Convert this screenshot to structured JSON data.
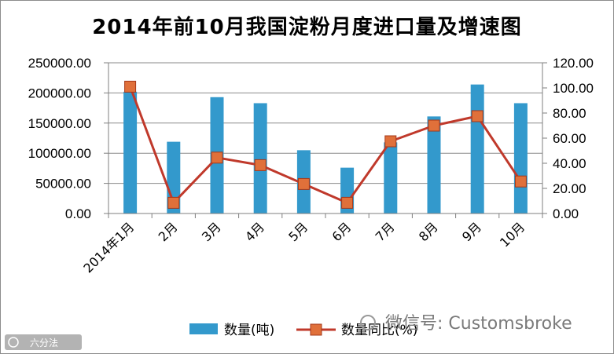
{
  "chart_data": {
    "type": "bar",
    "title": "2014年前10月我国淀粉月度进口量及增速图",
    "categories": [
      "2014年1月",
      "2月",
      "3月",
      "4月",
      "5月",
      "6月",
      "7月",
      "8月",
      "9月",
      "10月"
    ],
    "series": [
      {
        "name": "数量(吨)",
        "type": "bar",
        "axis": "left",
        "color": "#3399cc",
        "values": [
          202000,
          119000,
          193000,
          183000,
          105000,
          76000,
          118000,
          161000,
          214000,
          183000
        ]
      },
      {
        "name": "数量同比(%)",
        "type": "line",
        "axis": "right",
        "color": "#c0392b",
        "marker_color": "#e0703a",
        "values": [
          101,
          8.5,
          44.5,
          38.5,
          23.5,
          8.5,
          57.5,
          70,
          77.5,
          25.5
        ]
      }
    ],
    "left_axis": {
      "ylim": [
        0,
        250000
      ],
      "ticks": [
        "0.00",
        "50000.00",
        "100000.00",
        "150000.00",
        "200000.00",
        "250000.00"
      ]
    },
    "right_axis": {
      "ylim": [
        0,
        120
      ],
      "ticks": [
        "0.00",
        "20.00",
        "40.00",
        "60.00",
        "80.00",
        "100.00",
        "120.00"
      ]
    },
    "grid": true,
    "legend_position": "bottom"
  },
  "watermarks": {
    "wechat_text": "微信号: Customsbroke",
    "site_text": "六分法"
  }
}
